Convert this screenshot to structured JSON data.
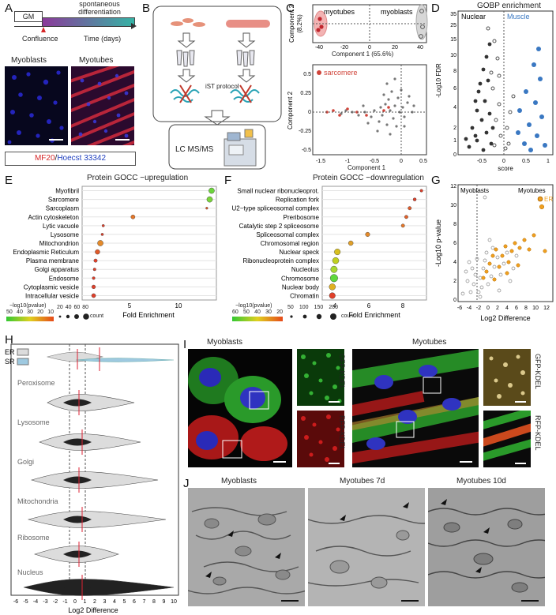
{
  "labels": [
    "A",
    "B",
    "C",
    "D",
    "E",
    "F",
    "G",
    "H",
    "I",
    "J"
  ],
  "A": {
    "gm": "GM",
    "diff": [
      "spontaneous",
      "differentiation"
    ],
    "confluence": "Confluence",
    "time": "Time (days)",
    "left_title": "Myoblasts",
    "right_title": "Myotubes",
    "stain1": "MF20",
    "stain_sep": "/",
    "stain2": "Hoecst 33342",
    "stain1_color": "#d62728",
    "stain2_color": "#1f3fbf"
  },
  "B": {
    "left": "myoblasts",
    "right": "myotubes",
    "ist": "iST protocol",
    "lcms": "LC MS/MS"
  },
  "C": {
    "top": {
      "ylabel": [
        "Component 2",
        "(8.2%)"
      ],
      "xlabel": "Component 1 (65.6%)",
      "group_left": "myotubes",
      "group_right": "myoblasts",
      "xticks": [
        "-40",
        "-20",
        "0",
        "20",
        "40"
      ],
      "yticks": [
        "5",
        "0",
        "-5"
      ]
    },
    "bottom": {
      "legend": "sarcomere",
      "ylabel": "Component 2",
      "xlabel": "Component 1",
      "xticks": [
        "-1.5",
        "-1",
        "-0.5",
        "0",
        "0.5"
      ],
      "yticks": [
        "0.5",
        "0.25",
        "0",
        "-0.25",
        "-0.5"
      ]
    }
  },
  "D": {
    "title": "GOBP enrichment",
    "nuclear": "Nuclear",
    "muscle": "Muscle",
    "ylabel": "-Log10 FDR",
    "xlabel": "score",
    "yticks": [
      "35",
      "25",
      "15",
      "10",
      "8",
      "6",
      "4",
      "2",
      "1",
      "0"
    ],
    "xticks": [
      "-0.5",
      "0",
      "0.5",
      "1"
    ],
    "muscle_color": "#3a78c2"
  },
  "E": {
    "title": "Protein GOCC −upregulation",
    "xlabel": "Fold Enrichment",
    "xticks": [
      "5",
      "10"
    ],
    "chart_data": {
      "type": "scatter",
      "categories": [
        "Myofibril",
        "Sarcomere",
        "Sarcoplasm",
        "Actin cytoskeleton",
        "Lytic vacuole",
        "Lysosome",
        "Mitochondrion",
        "Endoplasmic Reticulum",
        "Plasma membrane",
        "Golgi apparatus",
        "Endosome",
        "Cytoplasmic vesicle",
        "Intracellular vesicle"
      ],
      "values": [
        13.5,
        13.3,
        13.0,
        5.3,
        2.2,
        2.1,
        1.9,
        1.6,
        1.4,
        1.3,
        1.2,
        1.2,
        1.2
      ],
      "xlim": [
        0,
        14
      ]
    },
    "legend_title": "−log10(pvalue)",
    "legend_ticks": [
      "50",
      "40",
      "30",
      "20",
      "10"
    ],
    "count_label": "count",
    "count_ticks": [
      "20",
      "40",
      "60",
      "80"
    ]
  },
  "F": {
    "title": "Protein GOCC −downregulation",
    "xlabel": "Fold Enrichment",
    "xticks": [
      "4",
      "6",
      "8"
    ],
    "chart_data": {
      "type": "scatter",
      "categories": [
        "Small nuclear ribonucleoprot.",
        "Replication fork",
        "U2−type spliceosomal complex",
        "Preribosome",
        "Catalytic step 2 spliceosome",
        "Spliceosomal complex",
        "Chromosomal region",
        "Nuclear speck",
        "Ribonucleoprotein complex",
        "Nucleolus",
        "Chromosome",
        "Nuclear body",
        "Chromatin"
      ],
      "values": [
        9.1,
        8.7,
        8.4,
        8.2,
        8.0,
        5.9,
        4.9,
        4.1,
        4.0,
        3.9,
        3.9,
        3.8,
        3.8
      ],
      "xlim": [
        3.2,
        9.4
      ]
    },
    "legend_title": "−log10(pvalue)",
    "legend_ticks": [
      "60",
      "50",
      "40",
      "30",
      "20"
    ],
    "count_label": "count",
    "count_ticks": [
      "50",
      "100",
      "150",
      "200"
    ]
  },
  "G": {
    "left": "Myoblasts",
    "right": "Myotubes",
    "er": "ER",
    "ylabel": "-Log10 p-value",
    "xlabel": "Log2 Difference",
    "xticks": [
      "-6",
      "-4",
      "-2",
      "0",
      "2",
      "4",
      "6",
      "8",
      "10",
      "12"
    ],
    "yticks": [
      "12",
      "10",
      "8",
      "6",
      "4",
      "2",
      "0"
    ],
    "er_color": "#f0a020"
  },
  "H": {
    "legend": [
      "ER",
      "SR"
    ],
    "groups": [
      "Peroxisome",
      "Lysosome",
      "Golgi",
      "Mitochondria",
      "Ribosome",
      "Nucleus"
    ],
    "xlabel": "Log2 Difference",
    "xticks": [
      "-6",
      "-5",
      "-4",
      "-3",
      "-2",
      "-1",
      "0",
      "1",
      "2",
      "3",
      "4",
      "5",
      "6",
      "7",
      "8",
      "9",
      "10"
    ],
    "sr_color": "#9ec9e0"
  },
  "I": {
    "left_title": "Myoblasts",
    "right_title": "Myotubes",
    "gfp": "GFP-KDEL",
    "rfp": "RFP-KDEL"
  },
  "J": {
    "titles": [
      "Myoblasts",
      "Myotubes 7d",
      "Myotubes 10d"
    ]
  }
}
